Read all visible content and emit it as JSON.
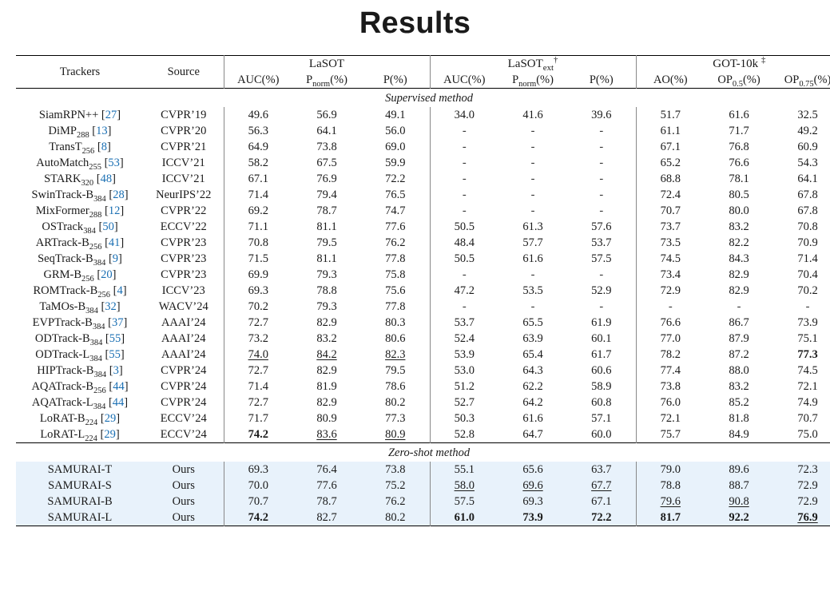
{
  "title": "Results",
  "groups": {
    "lasot": {
      "name": "LaSOT",
      "metrics": [
        "AUC(%)",
        "P_norm(%)",
        "P(%)"
      ]
    },
    "lasotext": {
      "name": "LaSOT_ext",
      "metrics": [
        "AUC(%)",
        "P_norm(%)",
        "P(%)"
      ],
      "dagger": 1
    },
    "got10k": {
      "name": "GOT-10k",
      "metrics": [
        "AO(%)",
        "OP_0.5(%)",
        "OP_0.75(%)"
      ],
      "ddagger": 1
    }
  },
  "head": {
    "trackers": "Trackers",
    "source": "Source"
  },
  "sections": {
    "sup": "Supervised method",
    "zero": "Zero-shot method"
  },
  "colors": {
    "background": "#ffffff",
    "highlight_row": "#e8f2fb",
    "citation_link": "#1a6fb3",
    "rule": "#000000"
  },
  "typography": {
    "title_font": "sans-serif",
    "title_size_pt": 28,
    "body_font": "Times New Roman",
    "body_size_pt": 11
  },
  "rows_sup": [
    {
      "name": "SiamRPN++",
      "sub": "",
      "cite": "27",
      "src": "CVPR’19",
      "v": [
        "49.6",
        "56.9",
        "49.1",
        "34.0",
        "41.6",
        "39.6",
        "51.7",
        "61.6",
        "32.5"
      ]
    },
    {
      "name": "DiMP",
      "sub": "288",
      "cite": "13",
      "src": "CVPR’20",
      "v": [
        "56.3",
        "64.1",
        "56.0",
        "-",
        "-",
        "-",
        "61.1",
        "71.7",
        "49.2"
      ]
    },
    {
      "name": "TransT",
      "sub": "256",
      "cite": "8",
      "src": "CVPR’21",
      "v": [
        "64.9",
        "73.8",
        "69.0",
        "-",
        "-",
        "-",
        "67.1",
        "76.8",
        "60.9"
      ]
    },
    {
      "name": "AutoMatch",
      "sub": "255",
      "cite": "53",
      "src": "ICCV’21",
      "v": [
        "58.2",
        "67.5",
        "59.9",
        "-",
        "-",
        "-",
        "65.2",
        "76.6",
        "54.3"
      ]
    },
    {
      "name": "STARK",
      "sub": "320",
      "cite": "48",
      "src": "ICCV’21",
      "v": [
        "67.1",
        "76.9",
        "72.2",
        "-",
        "-",
        "-",
        "68.8",
        "78.1",
        "64.1"
      ]
    },
    {
      "name": "SwinTrack-B",
      "sub": "384",
      "cite": "28",
      "src": "NeurIPS’22",
      "v": [
        "71.4",
        "79.4",
        "76.5",
        "-",
        "-",
        "-",
        "72.4",
        "80.5",
        "67.8"
      ]
    },
    {
      "name": "MixFormer",
      "sub": "288",
      "cite": "12",
      "src": "CVPR’22",
      "v": [
        "69.2",
        "78.7",
        "74.7",
        "-",
        "-",
        "-",
        "70.7",
        "80.0",
        "67.8"
      ]
    },
    {
      "name": "OSTrack",
      "sub": "384",
      "cite": "50",
      "src": "ECCV’22",
      "v": [
        "71.1",
        "81.1",
        "77.6",
        "50.5",
        "61.3",
        "57.6",
        "73.7",
        "83.2",
        "70.8"
      ]
    },
    {
      "name": "ARTrack-B",
      "sub": "256",
      "cite": "41",
      "src": "CVPR’23",
      "v": [
        "70.8",
        "79.5",
        "76.2",
        "48.4",
        "57.7",
        "53.7",
        "73.5",
        "82.2",
        "70.9"
      ]
    },
    {
      "name": "SeqTrack-B",
      "sub": "384",
      "cite": "9",
      "src": "CVPR’23",
      "v": [
        "71.5",
        "81.1",
        "77.8",
        "50.5",
        "61.6",
        "57.5",
        "74.5",
        "84.3",
        "71.4"
      ]
    },
    {
      "name": "GRM-B",
      "sub": "256",
      "cite": "20",
      "src": "CVPR’23",
      "v": [
        "69.9",
        "79.3",
        "75.8",
        "-",
        "-",
        "-",
        "73.4",
        "82.9",
        "70.4"
      ]
    },
    {
      "name": "ROMTrack-B",
      "sub": "256",
      "cite": "4",
      "src": "ICCV’23",
      "v": [
        "69.3",
        "78.8",
        "75.6",
        "47.2",
        "53.5",
        "52.9",
        "72.9",
        "82.9",
        "70.2"
      ]
    },
    {
      "name": "TaMOs-B",
      "sub": "384",
      "cite": "32",
      "src": "WACV’24",
      "v": [
        "70.2",
        "79.3",
        "77.8",
        "-",
        "-",
        "-",
        "-",
        "-",
        "-"
      ]
    },
    {
      "name": "EVPTrack-B",
      "sub": "384",
      "cite": "37",
      "src": "AAAI’24",
      "v": [
        "72.7",
        "82.9",
        "80.3",
        "53.7",
        "65.5",
        "61.9",
        "76.6",
        "86.7",
        "73.9"
      ]
    },
    {
      "name": "ODTrack-B",
      "sub": "384",
      "cite": "55",
      "src": "AAAI’24",
      "v": [
        "73.2",
        "83.2",
        "80.6",
        "52.4",
        "63.9",
        "60.1",
        "77.0",
        "87.9",
        "75.1"
      ]
    },
    {
      "name": "ODTrack-L",
      "sub": "384",
      "cite": "55",
      "src": "AAAI’24",
      "v": [
        "74.0",
        "84.2",
        "82.3",
        "53.9",
        "65.4",
        "61.7",
        "78.2",
        "87.2",
        "77.3"
      ],
      "underline": [
        0,
        1,
        2
      ],
      "bold": [
        8
      ]
    },
    {
      "name": "HIPTrack-B",
      "sub": "384",
      "cite": "3",
      "src": "CVPR’24",
      "v": [
        "72.7",
        "82.9",
        "79.5",
        "53.0",
        "64.3",
        "60.6",
        "77.4",
        "88.0",
        "74.5"
      ]
    },
    {
      "name": "AQATrack-B",
      "sub": "256",
      "cite": "44",
      "src": "CVPR’24",
      "v": [
        "71.4",
        "81.9",
        "78.6",
        "51.2",
        "62.2",
        "58.9",
        "73.8",
        "83.2",
        "72.1"
      ]
    },
    {
      "name": "AQATrack-L",
      "sub": "384",
      "cite": "44",
      "src": "CVPR’24",
      "v": [
        "72.7",
        "82.9",
        "80.2",
        "52.7",
        "64.2",
        "60.8",
        "76.0",
        "85.2",
        "74.9"
      ]
    },
    {
      "name": "LoRAT-B",
      "sub": "224",
      "cite": "29",
      "src": "ECCV’24",
      "v": [
        "71.7",
        "80.9",
        "77.3",
        "50.3",
        "61.6",
        "57.1",
        "72.1",
        "81.8",
        "70.7"
      ]
    },
    {
      "name": "LoRAT-L",
      "sub": "224",
      "cite": "29",
      "src": "ECCV’24",
      "v": [
        "74.2",
        "83.6",
        "80.9",
        "52.8",
        "64.7",
        "60.0",
        "75.7",
        "84.9",
        "75.0"
      ],
      "bold": [
        0
      ],
      "underline": [
        1,
        2
      ]
    }
  ],
  "rows_zero": [
    {
      "name": "SAMURAI-T",
      "src": "Ours",
      "v": [
        "69.3",
        "76.4",
        "73.8",
        "55.1",
        "65.6",
        "63.7",
        "79.0",
        "89.6",
        "72.3"
      ]
    },
    {
      "name": "SAMURAI-S",
      "src": "Ours",
      "v": [
        "70.0",
        "77.6",
        "75.2",
        "58.0",
        "69.6",
        "67.7",
        "78.8",
        "88.7",
        "72.9"
      ],
      "underline": [
        3,
        4,
        5
      ]
    },
    {
      "name": "SAMURAI-B",
      "src": "Ours",
      "v": [
        "70.7",
        "78.7",
        "76.2",
        "57.5",
        "69.3",
        "67.1",
        "79.6",
        "90.8",
        "72.9"
      ],
      "underline": [
        6,
        7
      ]
    },
    {
      "name": "SAMURAI-L",
      "src": "Ours",
      "v": [
        "74.2",
        "82.7",
        "80.2",
        "61.0",
        "73.9",
        "72.2",
        "81.7",
        "92.2",
        "76.9"
      ],
      "bold": [
        0,
        3,
        4,
        5,
        6,
        7,
        8
      ],
      "underline": [
        8
      ]
    }
  ]
}
